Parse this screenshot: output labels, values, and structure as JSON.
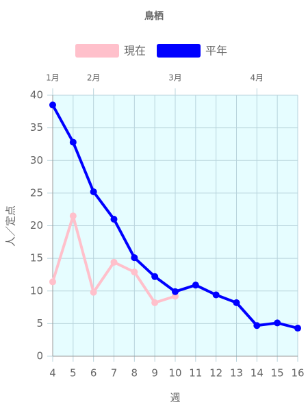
{
  "chart_data": {
    "type": "line",
    "title": "鳥栖",
    "x_label": "週",
    "y_label": "人／定点",
    "x": [
      4,
      5,
      6,
      7,
      8,
      9,
      10,
      11,
      12,
      13,
      14,
      15,
      16
    ],
    "series": [
      {
        "name": "現在",
        "color": "#ffc0cb",
        "values": [
          11.4,
          21.5,
          9.8,
          14.4,
          12.9,
          8.2,
          9.2,
          null,
          null,
          null,
          null,
          null,
          null
        ]
      },
      {
        "name": "平年",
        "color": "#0000ff",
        "values": [
          38.5,
          32.8,
          25.2,
          21.0,
          15.1,
          12.2,
          9.9,
          10.9,
          9.4,
          8.2,
          4.7,
          5.1,
          4.3
        ]
      }
    ],
    "xlim": [
      4,
      16
    ],
    "xticks": [
      4,
      5,
      6,
      7,
      8,
      9,
      10,
      11,
      12,
      13,
      14,
      15,
      16
    ],
    "x2ticks": [
      {
        "value": 4,
        "label": "1月"
      },
      {
        "value": 6,
        "label": "2月"
      },
      {
        "value": 10,
        "label": "3月"
      },
      {
        "value": 14,
        "label": "4月"
      }
    ],
    "ylim": [
      0,
      40
    ],
    "yticks": [
      0,
      5,
      10,
      15,
      20,
      25,
      30,
      35,
      40
    ],
    "grid": true,
    "plot_background": "#e6fdff",
    "legend": "top"
  }
}
